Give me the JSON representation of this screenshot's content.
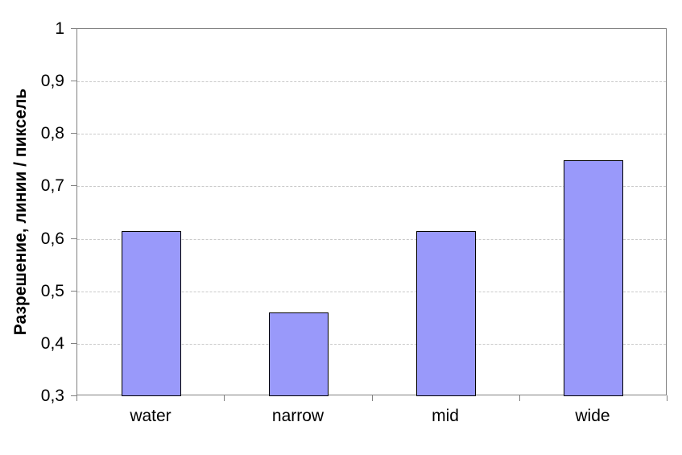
{
  "chart_data": {
    "type": "bar",
    "title": "",
    "xlabel": "",
    "ylabel": "Разрешение, линии / пиксель",
    "categories": [
      "water",
      "narrow",
      "mid",
      "wide"
    ],
    "values": [
      0.615,
      0.46,
      0.615,
      0.75
    ],
    "ylim": [
      0.3,
      1.0
    ],
    "ytick_step": 0.1,
    "ytick_labels": [
      "0,3",
      "0,4",
      "0,5",
      "0,6",
      "0,7",
      "0,8",
      "0,9",
      "1"
    ],
    "grid": "horizontal-dashed",
    "legend_position": "none",
    "colors": {
      "bar_fill": "#9999fa",
      "bar_border": "#000000",
      "gridline": "#c9c9c9",
      "axis_border": "#808080",
      "text": "#000000",
      "background": "#ffffff"
    }
  }
}
